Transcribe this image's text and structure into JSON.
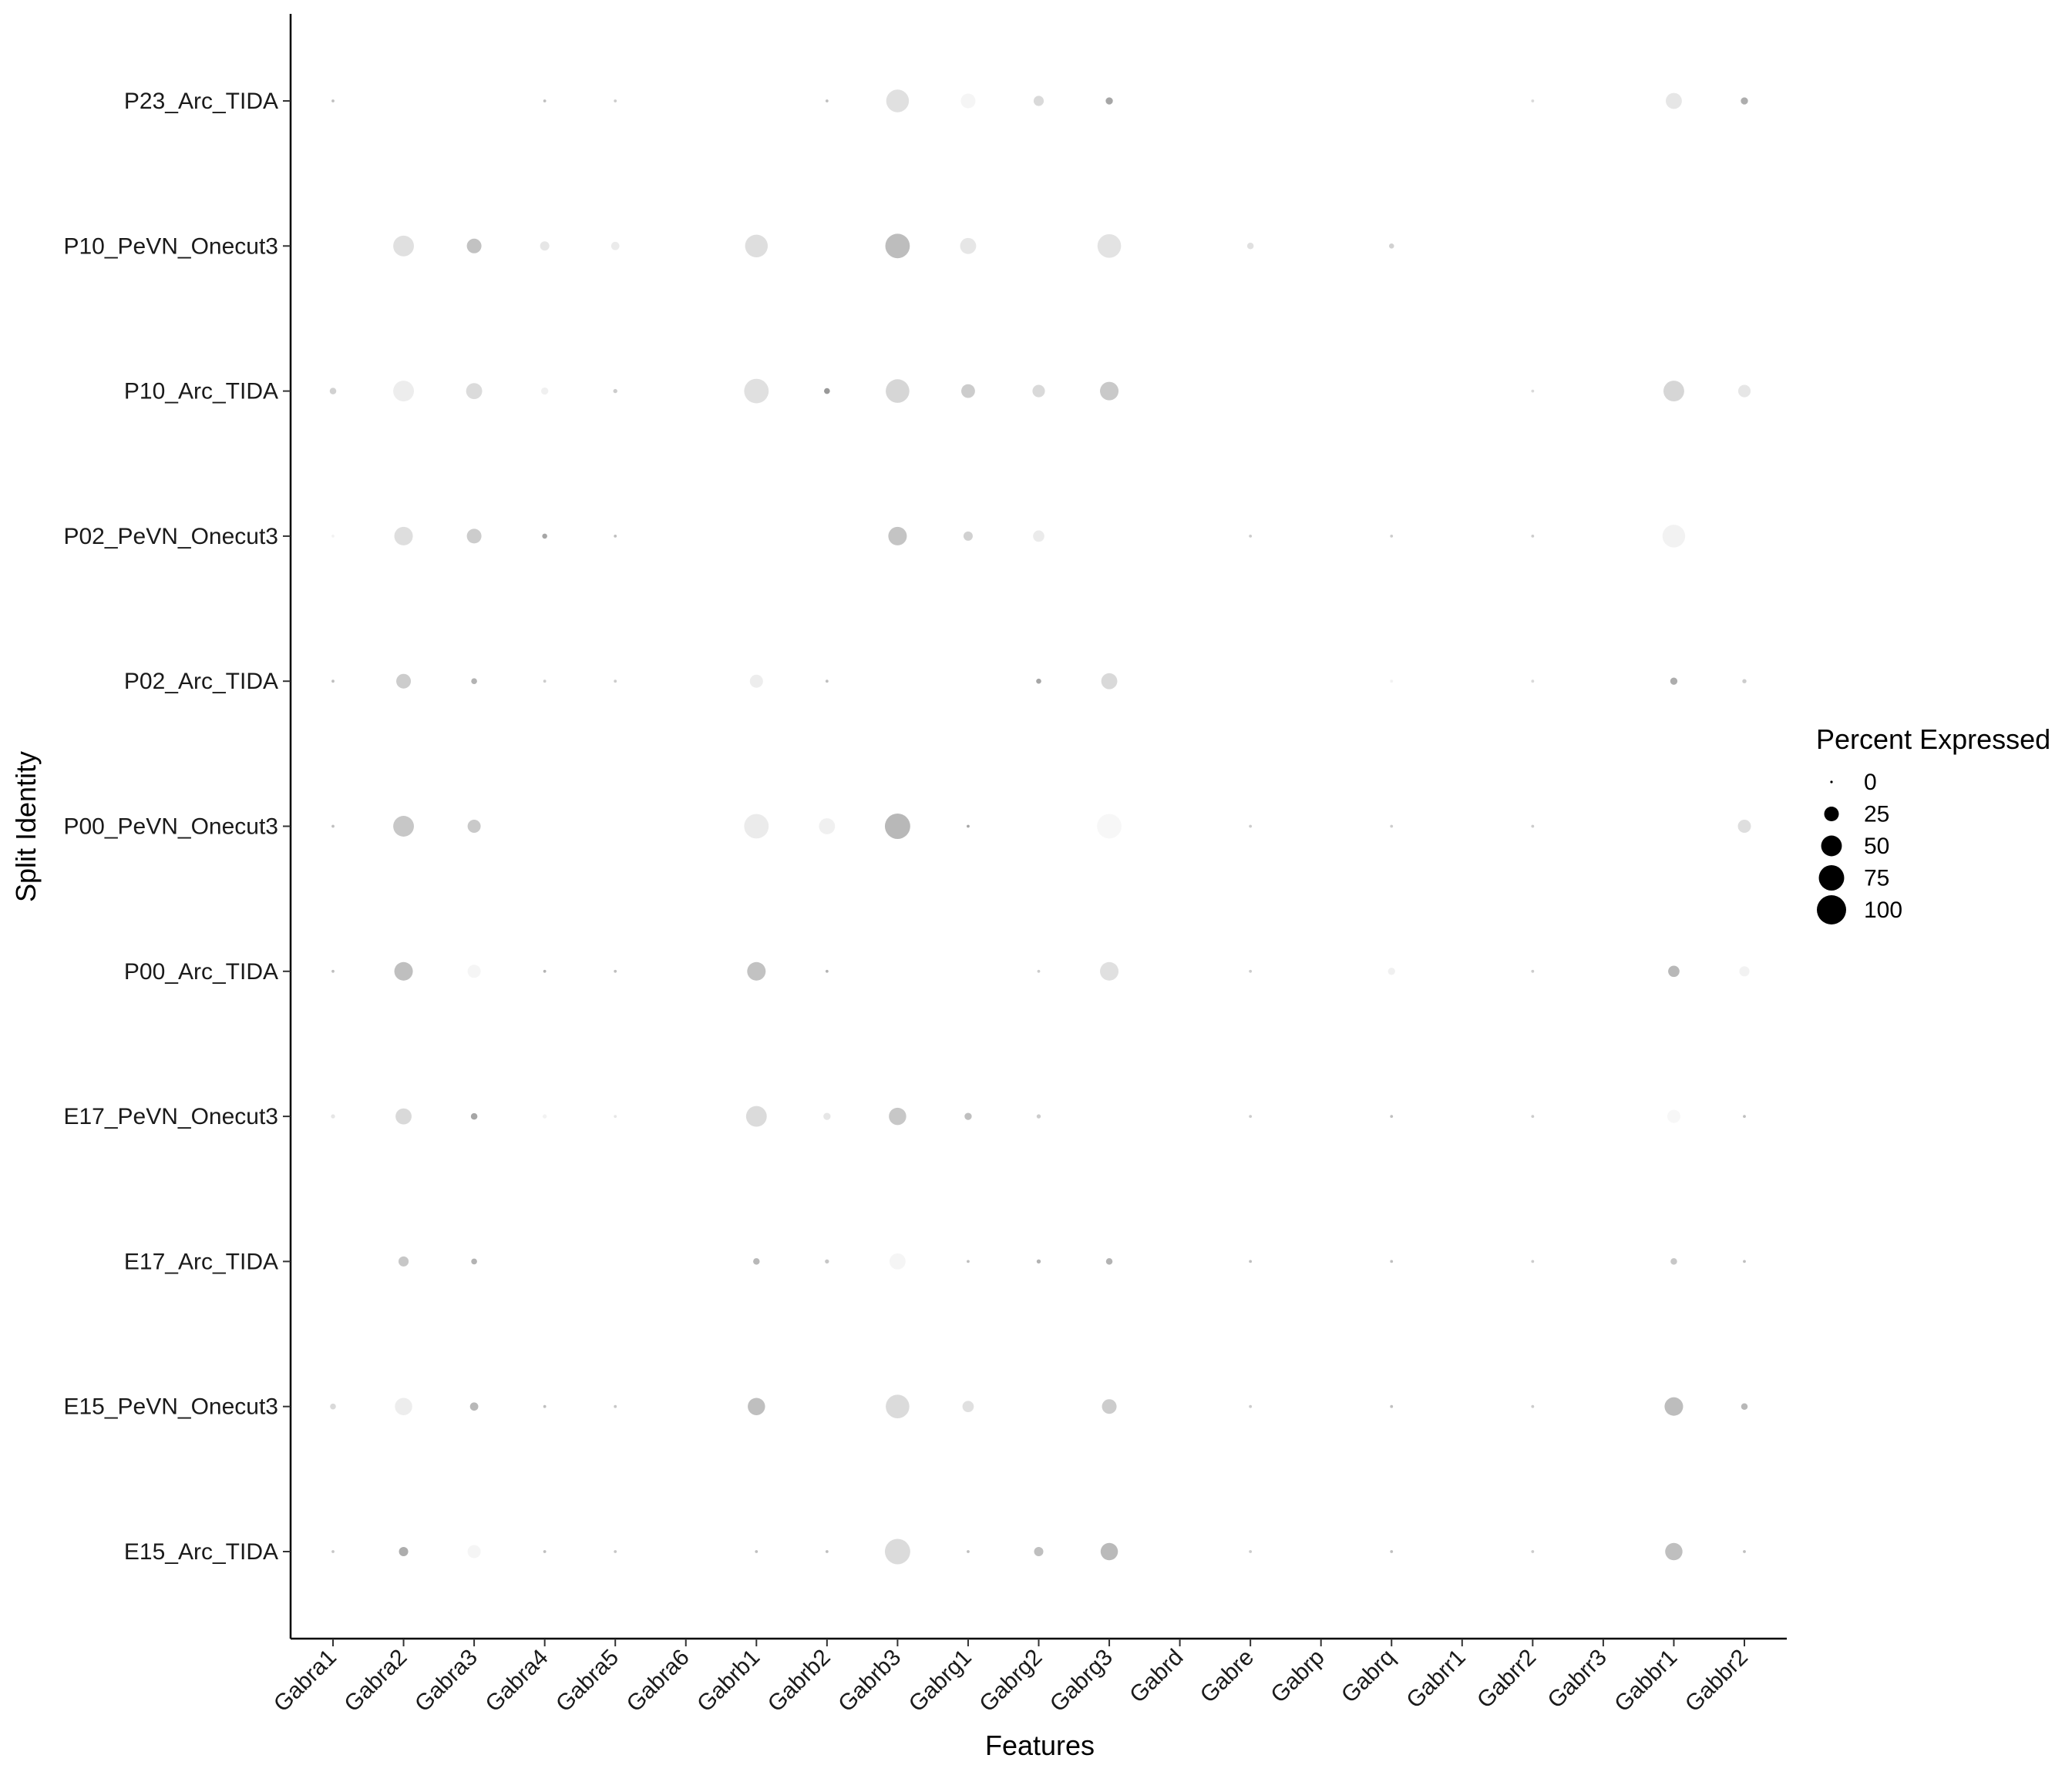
{
  "chart_data": {
    "type": "scatter",
    "subtype": "dot-plot",
    "xlabel": "Features",
    "ylabel": "Split Identity",
    "features": [
      "Gabra1",
      "Gabra2",
      "Gabra3",
      "Gabra4",
      "Gabra5",
      "Gabra6",
      "Gabrb1",
      "Gabrb2",
      "Gabrb3",
      "Gabrg1",
      "Gabrg2",
      "Gabrg3",
      "Gabrd",
      "Gabre",
      "Gabrp",
      "Gabrq",
      "Gabrr1",
      "Gabrr2",
      "Gabrr3",
      "Gabbr1",
      "Gabbr2"
    ],
    "identities": [
      "P23_Arc_TIDA",
      "P10_PeVN_Onecut3",
      "P10_Arc_TIDA",
      "P02_PeVN_Onecut3",
      "P02_Arc_TIDA",
      "P00_PeVN_Onecut3",
      "P00_Arc_TIDA",
      "E17_PeVN_Onecut3",
      "E17_Arc_TIDA",
      "E15_PeVN_Onecut3",
      "E15_Arc_TIDA"
    ],
    "legend": {
      "title": "Percent Expressed",
      "breaks": [
        0,
        25,
        50,
        75,
        100
      ],
      "labels": [
        "0",
        "25",
        "50",
        "75",
        "100"
      ],
      "placement": "right"
    },
    "points": [
      {
        "identity": "P23_Arc_TIDA",
        "feature": "Gabra1",
        "pct": 1,
        "shade": 0.75
      },
      {
        "identity": "P23_Arc_TIDA",
        "feature": "Gabra4",
        "pct": 1,
        "shade": 0.75
      },
      {
        "identity": "P23_Arc_TIDA",
        "feature": "Gabra5",
        "pct": 1,
        "shade": 0.8
      },
      {
        "identity": "P23_Arc_TIDA",
        "feature": "Gabrb2",
        "pct": 1,
        "shade": 0.75
      },
      {
        "identity": "P23_Arc_TIDA",
        "feature": "Gabrb3",
        "pct": 60,
        "shade": 0.88
      },
      {
        "identity": "P23_Arc_TIDA",
        "feature": "Gabrg1",
        "pct": 25,
        "shade": 0.96
      },
      {
        "identity": "P23_Arc_TIDA",
        "feature": "Gabrg2",
        "pct": 12,
        "shade": 0.85
      },
      {
        "identity": "P23_Arc_TIDA",
        "feature": "Gabrg3",
        "pct": 6,
        "shade": 0.65
      },
      {
        "identity": "P23_Arc_TIDA",
        "feature": "Gabrr2",
        "pct": 1,
        "shade": 0.85
      },
      {
        "identity": "P23_Arc_TIDA",
        "feature": "Gabbr1",
        "pct": 30,
        "shade": 0.9
      },
      {
        "identity": "P23_Arc_TIDA",
        "feature": "Gabbr2",
        "pct": 6,
        "shade": 0.68
      },
      {
        "identity": "P10_PeVN_Onecut3",
        "feature": "Gabra2",
        "pct": 50,
        "shade": 0.88
      },
      {
        "identity": "P10_PeVN_Onecut3",
        "feature": "Gabra3",
        "pct": 25,
        "shade": 0.76
      },
      {
        "identity": "P10_PeVN_Onecut3",
        "feature": "Gabra4",
        "pct": 10,
        "shade": 0.9
      },
      {
        "identity": "P10_PeVN_Onecut3",
        "feature": "Gabra5",
        "pct": 8,
        "shade": 0.92
      },
      {
        "identity": "P10_PeVN_Onecut3",
        "feature": "Gabrb1",
        "pct": 60,
        "shade": 0.87
      },
      {
        "identity": "P10_PeVN_Onecut3",
        "feature": "Gabrb3",
        "pct": 70,
        "shade": 0.74
      },
      {
        "identity": "P10_PeVN_Onecut3",
        "feature": "Gabrg1",
        "pct": 30,
        "shade": 0.9
      },
      {
        "identity": "P10_PeVN_Onecut3",
        "feature": "Gabrg3",
        "pct": 65,
        "shade": 0.89
      },
      {
        "identity": "P10_PeVN_Onecut3",
        "feature": "Gabre",
        "pct": 5,
        "shade": 0.88
      },
      {
        "identity": "P10_PeVN_Onecut3",
        "feature": "Gabrq",
        "pct": 3,
        "shade": 0.82
      },
      {
        "identity": "P10_Arc_TIDA",
        "feature": "Gabra1",
        "pct": 5,
        "shade": 0.82
      },
      {
        "identity": "P10_Arc_TIDA",
        "feature": "Gabra2",
        "pct": 50,
        "shade": 0.93
      },
      {
        "identity": "P10_Arc_TIDA",
        "feature": "Gabra3",
        "pct": 30,
        "shade": 0.86
      },
      {
        "identity": "P10_Arc_TIDA",
        "feature": "Gabra4",
        "pct": 6,
        "shade": 0.94
      },
      {
        "identity": "P10_Arc_TIDA",
        "feature": "Gabra5",
        "pct": 2,
        "shade": 0.8
      },
      {
        "identity": "P10_Arc_TIDA",
        "feature": "Gabrb1",
        "pct": 70,
        "shade": 0.88
      },
      {
        "identity": "P10_Arc_TIDA",
        "feature": "Gabrb2",
        "pct": 4,
        "shade": 0.6
      },
      {
        "identity": "P10_Arc_TIDA",
        "feature": "Gabrb3",
        "pct": 65,
        "shade": 0.84
      },
      {
        "identity": "P10_Arc_TIDA",
        "feature": "Gabrg1",
        "pct": 22,
        "shade": 0.8
      },
      {
        "identity": "P10_Arc_TIDA",
        "feature": "Gabrg2",
        "pct": 18,
        "shade": 0.85
      },
      {
        "identity": "P10_Arc_TIDA",
        "feature": "Gabrg3",
        "pct": 40,
        "shade": 0.79
      },
      {
        "identity": "P10_Arc_TIDA",
        "feature": "Gabrr2",
        "pct": 1,
        "shade": 0.85
      },
      {
        "identity": "P10_Arc_TIDA",
        "feature": "Gabbr1",
        "pct": 50,
        "shade": 0.84
      },
      {
        "identity": "P10_Arc_TIDA",
        "feature": "Gabbr2",
        "pct": 18,
        "shade": 0.9
      },
      {
        "identity": "P02_PeVN_Onecut3",
        "feature": "Gabra1",
        "pct": 1,
        "shade": 0.95
      },
      {
        "identity": "P02_PeVN_Onecut3",
        "feature": "Gabra2",
        "pct": 40,
        "shade": 0.87
      },
      {
        "identity": "P02_PeVN_Onecut3",
        "feature": "Gabra3",
        "pct": 25,
        "shade": 0.8
      },
      {
        "identity": "P02_PeVN_Onecut3",
        "feature": "Gabra4",
        "pct": 3,
        "shade": 0.65
      },
      {
        "identity": "P02_PeVN_Onecut3",
        "feature": "Gabra5",
        "pct": 1,
        "shade": 0.75
      },
      {
        "identity": "P02_PeVN_Onecut3",
        "feature": "Gabrb3",
        "pct": 40,
        "shade": 0.77
      },
      {
        "identity": "P02_PeVN_Onecut3",
        "feature": "Gabrg1",
        "pct": 10,
        "shade": 0.82
      },
      {
        "identity": "P02_PeVN_Onecut3",
        "feature": "Gabrg2",
        "pct": 15,
        "shade": 0.92
      },
      {
        "identity": "P02_PeVN_Onecut3",
        "feature": "Gabre",
        "pct": 1,
        "shade": 0.8
      },
      {
        "identity": "P02_PeVN_Onecut3",
        "feature": "Gabrq",
        "pct": 1,
        "shade": 0.8
      },
      {
        "identity": "P02_PeVN_Onecut3",
        "feature": "Gabrr2",
        "pct": 1,
        "shade": 0.8
      },
      {
        "identity": "P02_PeVN_Onecut3",
        "feature": "Gabbr1",
        "pct": 60,
        "shade": 0.95
      },
      {
        "identity": "P02_Arc_TIDA",
        "feature": "Gabra1",
        "pct": 1,
        "shade": 0.75
      },
      {
        "identity": "P02_Arc_TIDA",
        "feature": "Gabra2",
        "pct": 25,
        "shade": 0.8
      },
      {
        "identity": "P02_Arc_TIDA",
        "feature": "Gabra3",
        "pct": 4,
        "shade": 0.7
      },
      {
        "identity": "P02_Arc_TIDA",
        "feature": "Gabra4",
        "pct": 1,
        "shade": 0.8
      },
      {
        "identity": "P02_Arc_TIDA",
        "feature": "Gabra5",
        "pct": 1,
        "shade": 0.8
      },
      {
        "identity": "P02_Arc_TIDA",
        "feature": "Gabrb1",
        "pct": 20,
        "shade": 0.93
      },
      {
        "identity": "P02_Arc_TIDA",
        "feature": "Gabrb2",
        "pct": 1,
        "shade": 0.75
      },
      {
        "identity": "P02_Arc_TIDA",
        "feature": "Gabrg2",
        "pct": 3,
        "shade": 0.65
      },
      {
        "identity": "P02_Arc_TIDA",
        "feature": "Gabrg3",
        "pct": 30,
        "shade": 0.85
      },
      {
        "identity": "P02_Arc_TIDA",
        "feature": "Gabrq",
        "pct": 1,
        "shade": 0.95
      },
      {
        "identity": "P02_Arc_TIDA",
        "feature": "Gabrr2",
        "pct": 1,
        "shade": 0.85
      },
      {
        "identity": "P02_Arc_TIDA",
        "feature": "Gabbr1",
        "pct": 6,
        "shade": 0.68
      },
      {
        "identity": "P02_Arc_TIDA",
        "feature": "Gabbr2",
        "pct": 2,
        "shade": 0.8
      },
      {
        "identity": "P00_PeVN_Onecut3",
        "feature": "Gabra1",
        "pct": 1,
        "shade": 0.75
      },
      {
        "identity": "P00_PeVN_Onecut3",
        "feature": "Gabra2",
        "pct": 50,
        "shade": 0.78
      },
      {
        "identity": "P00_PeVN_Onecut3",
        "feature": "Gabra3",
        "pct": 20,
        "shade": 0.79
      },
      {
        "identity": "P00_PeVN_Onecut3",
        "feature": "Gabrb1",
        "pct": 70,
        "shade": 0.92
      },
      {
        "identity": "P00_PeVN_Onecut3",
        "feature": "Gabrb2",
        "pct": 30,
        "shade": 0.94
      },
      {
        "identity": "P00_PeVN_Onecut3",
        "feature": "Gabrb3",
        "pct": 75,
        "shade": 0.72
      },
      {
        "identity": "P00_PeVN_Onecut3",
        "feature": "Gabrg1",
        "pct": 1,
        "shade": 0.65
      },
      {
        "identity": "P00_PeVN_Onecut3",
        "feature": "Gabrg3",
        "pct": 70,
        "shade": 0.97
      },
      {
        "identity": "P00_PeVN_Onecut3",
        "feature": "Gabre",
        "pct": 1,
        "shade": 0.8
      },
      {
        "identity": "P00_PeVN_Onecut3",
        "feature": "Gabrq",
        "pct": 1,
        "shade": 0.8
      },
      {
        "identity": "P00_PeVN_Onecut3",
        "feature": "Gabrr2",
        "pct": 1,
        "shade": 0.8
      },
      {
        "identity": "P00_PeVN_Onecut3",
        "feature": "Gabbr2",
        "pct": 20,
        "shade": 0.87
      },
      {
        "identity": "P00_Arc_TIDA",
        "feature": "Gabra1",
        "pct": 1,
        "shade": 0.75
      },
      {
        "identity": "P00_Arc_TIDA",
        "feature": "Gabra2",
        "pct": 40,
        "shade": 0.75
      },
      {
        "identity": "P00_Arc_TIDA",
        "feature": "Gabra3",
        "pct": 20,
        "shade": 0.96
      },
      {
        "identity": "P00_Arc_TIDA",
        "feature": "Gabra4",
        "pct": 1,
        "shade": 0.7
      },
      {
        "identity": "P00_Arc_TIDA",
        "feature": "Gabra5",
        "pct": 1,
        "shade": 0.75
      },
      {
        "identity": "P00_Arc_TIDA",
        "feature": "Gabrb1",
        "pct": 40,
        "shade": 0.76
      },
      {
        "identity": "P00_Arc_TIDA",
        "feature": "Gabrb2",
        "pct": 1,
        "shade": 0.7
      },
      {
        "identity": "P00_Arc_TIDA",
        "feature": "Gabrg2",
        "pct": 1,
        "shade": 0.8
      },
      {
        "identity": "P00_Arc_TIDA",
        "feature": "Gabrg3",
        "pct": 40,
        "shade": 0.88
      },
      {
        "identity": "P00_Arc_TIDA",
        "feature": "Gabre",
        "pct": 1,
        "shade": 0.8
      },
      {
        "identity": "P00_Arc_TIDA",
        "feature": "Gabrq",
        "pct": 6,
        "shade": 0.94
      },
      {
        "identity": "P00_Arc_TIDA",
        "feature": "Gabrr2",
        "pct": 1,
        "shade": 0.8
      },
      {
        "identity": "P00_Arc_TIDA",
        "feature": "Gabbr1",
        "pct": 15,
        "shade": 0.72
      },
      {
        "identity": "P00_Arc_TIDA",
        "feature": "Gabbr2",
        "pct": 12,
        "shade": 0.95
      },
      {
        "identity": "E17_PeVN_Onecut3",
        "feature": "Gabra1",
        "pct": 2,
        "shade": 0.9
      },
      {
        "identity": "E17_PeVN_Onecut3",
        "feature": "Gabra2",
        "pct": 30,
        "shade": 0.85
      },
      {
        "identity": "E17_PeVN_Onecut3",
        "feature": "Gabra3",
        "pct": 5,
        "shade": 0.65
      },
      {
        "identity": "E17_PeVN_Onecut3",
        "feature": "Gabra4",
        "pct": 2,
        "shade": 0.95
      },
      {
        "identity": "E17_PeVN_Onecut3",
        "feature": "Gabra5",
        "pct": 1,
        "shade": 0.9
      },
      {
        "identity": "E17_PeVN_Onecut3",
        "feature": "Gabrb1",
        "pct": 50,
        "shade": 0.86
      },
      {
        "identity": "E17_PeVN_Onecut3",
        "feature": "Gabrb2",
        "pct": 6,
        "shade": 0.9
      },
      {
        "identity": "E17_PeVN_Onecut3",
        "feature": "Gabrb3",
        "pct": 35,
        "shade": 0.78
      },
      {
        "identity": "E17_PeVN_Onecut3",
        "feature": "Gabrg1",
        "pct": 6,
        "shade": 0.75
      },
      {
        "identity": "E17_PeVN_Onecut3",
        "feature": "Gabrg2",
        "pct": 2,
        "shade": 0.8
      },
      {
        "identity": "E17_PeVN_Onecut3",
        "feature": "Gabre",
        "pct": 1,
        "shade": 0.8
      },
      {
        "identity": "E17_PeVN_Onecut3",
        "feature": "Gabrq",
        "pct": 1,
        "shade": 0.75
      },
      {
        "identity": "E17_PeVN_Onecut3",
        "feature": "Gabrr2",
        "pct": 1,
        "shade": 0.8
      },
      {
        "identity": "E17_PeVN_Onecut3",
        "feature": "Gabbr1",
        "pct": 20,
        "shade": 0.97
      },
      {
        "identity": "E17_PeVN_Onecut3",
        "feature": "Gabbr2",
        "pct": 1,
        "shade": 0.75
      },
      {
        "identity": "E17_Arc_TIDA",
        "feature": "Gabra2",
        "pct": 12,
        "shade": 0.78
      },
      {
        "identity": "E17_Arc_TIDA",
        "feature": "Gabra3",
        "pct": 4,
        "shade": 0.7
      },
      {
        "identity": "E17_Arc_TIDA",
        "feature": "Gabrb1",
        "pct": 5,
        "shade": 0.72
      },
      {
        "identity": "E17_Arc_TIDA",
        "feature": "Gabrb2",
        "pct": 2,
        "shade": 0.78
      },
      {
        "identity": "E17_Arc_TIDA",
        "feature": "Gabrb3",
        "pct": 30,
        "shade": 0.96
      },
      {
        "identity": "E17_Arc_TIDA",
        "feature": "Gabrg1",
        "pct": 1,
        "shade": 0.75
      },
      {
        "identity": "E17_Arc_TIDA",
        "feature": "Gabrg2",
        "pct": 2,
        "shade": 0.7
      },
      {
        "identity": "E17_Arc_TIDA",
        "feature": "Gabrg3",
        "pct": 5,
        "shade": 0.7
      },
      {
        "identity": "E17_Arc_TIDA",
        "feature": "Gabre",
        "pct": 1,
        "shade": 0.75
      },
      {
        "identity": "E17_Arc_TIDA",
        "feature": "Gabrq",
        "pct": 1,
        "shade": 0.75
      },
      {
        "identity": "E17_Arc_TIDA",
        "feature": "Gabrr2",
        "pct": 1,
        "shade": 0.8
      },
      {
        "identity": "E17_Arc_TIDA",
        "feature": "Gabbr1",
        "pct": 5,
        "shade": 0.78
      },
      {
        "identity": "E17_Arc_TIDA",
        "feature": "Gabbr2",
        "pct": 1,
        "shade": 0.75
      },
      {
        "identity": "E15_PeVN_Onecut3",
        "feature": "Gabra1",
        "pct": 4,
        "shade": 0.85
      },
      {
        "identity": "E15_PeVN_Onecut3",
        "feature": "Gabra2",
        "pct": 35,
        "shade": 0.93
      },
      {
        "identity": "E15_PeVN_Onecut3",
        "feature": "Gabra3",
        "pct": 8,
        "shade": 0.72
      },
      {
        "identity": "E15_PeVN_Onecut3",
        "feature": "Gabra4",
        "pct": 1,
        "shade": 0.75
      },
      {
        "identity": "E15_PeVN_Onecut3",
        "feature": "Gabra5",
        "pct": 1,
        "shade": 0.78
      },
      {
        "identity": "E15_PeVN_Onecut3",
        "feature": "Gabrb1",
        "pct": 35,
        "shade": 0.75
      },
      {
        "identity": "E15_PeVN_Onecut3",
        "feature": "Gabrb3",
        "pct": 65,
        "shade": 0.86
      },
      {
        "identity": "E15_PeVN_Onecut3",
        "feature": "Gabrg1",
        "pct": 15,
        "shade": 0.88
      },
      {
        "identity": "E15_PeVN_Onecut3",
        "feature": "Gabrg3",
        "pct": 25,
        "shade": 0.8
      },
      {
        "identity": "E15_PeVN_Onecut3",
        "feature": "Gabre",
        "pct": 1,
        "shade": 0.8
      },
      {
        "identity": "E15_PeVN_Onecut3",
        "feature": "Gabrq",
        "pct": 1,
        "shade": 0.75
      },
      {
        "identity": "E15_PeVN_Onecut3",
        "feature": "Gabrr2",
        "pct": 1,
        "shade": 0.8
      },
      {
        "identity": "E15_PeVN_Onecut3",
        "feature": "Gabbr1",
        "pct": 40,
        "shade": 0.74
      },
      {
        "identity": "E15_PeVN_Onecut3",
        "feature": "Gabbr2",
        "pct": 5,
        "shade": 0.72
      },
      {
        "identity": "E15_Arc_TIDA",
        "feature": "Gabra1",
        "pct": 1,
        "shade": 0.78
      },
      {
        "identity": "E15_Arc_TIDA",
        "feature": "Gabra2",
        "pct": 10,
        "shade": 0.68
      },
      {
        "identity": "E15_Arc_TIDA",
        "feature": "Gabra3",
        "pct": 20,
        "shade": 0.96
      },
      {
        "identity": "E15_Arc_TIDA",
        "feature": "Gabra4",
        "pct": 1,
        "shade": 0.75
      },
      {
        "identity": "E15_Arc_TIDA",
        "feature": "Gabra5",
        "pct": 1,
        "shade": 0.78
      },
      {
        "identity": "E15_Arc_TIDA",
        "feature": "Gabrb1",
        "pct": 1,
        "shade": 0.75
      },
      {
        "identity": "E15_Arc_TIDA",
        "feature": "Gabrb2",
        "pct": 1,
        "shade": 0.75
      },
      {
        "identity": "E15_Arc_TIDA",
        "feature": "Gabrb3",
        "pct": 75,
        "shade": 0.86
      },
      {
        "identity": "E15_Arc_TIDA",
        "feature": "Gabrg1",
        "pct": 1,
        "shade": 0.75
      },
      {
        "identity": "E15_Arc_TIDA",
        "feature": "Gabrg2",
        "pct": 10,
        "shade": 0.75
      },
      {
        "identity": "E15_Arc_TIDA",
        "feature": "Gabrg3",
        "pct": 35,
        "shade": 0.73
      },
      {
        "identity": "E15_Arc_TIDA",
        "feature": "Gabre",
        "pct": 1,
        "shade": 0.8
      },
      {
        "identity": "E15_Arc_TIDA",
        "feature": "Gabrq",
        "pct": 1,
        "shade": 0.75
      },
      {
        "identity": "E15_Arc_TIDA",
        "feature": "Gabrr2",
        "pct": 1,
        "shade": 0.8
      },
      {
        "identity": "E15_Arc_TIDA",
        "feature": "Gabbr1",
        "pct": 35,
        "shade": 0.75
      },
      {
        "identity": "E15_Arc_TIDA",
        "feature": "Gabbr2",
        "pct": 1,
        "shade": 0.75
      }
    ]
  }
}
